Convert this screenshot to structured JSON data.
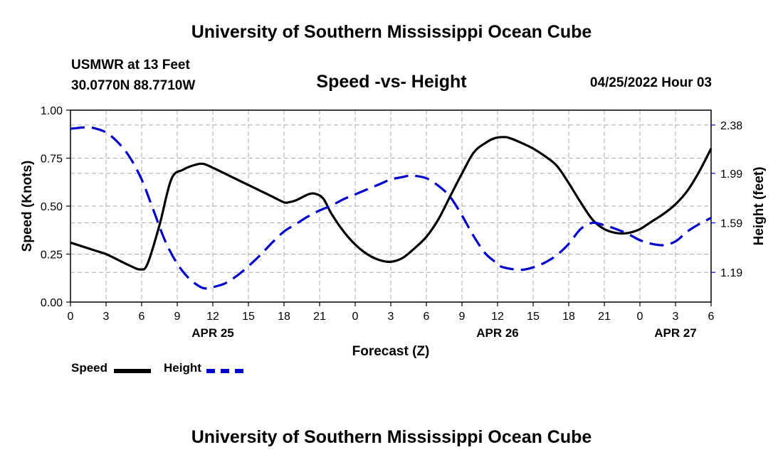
{
  "header": {
    "title": "University of Southern Mississippi Ocean Cube",
    "station_line1": "USMWR at 13 Feet",
    "station_line2": "30.0770N  88.7710W",
    "subtitle": "Speed -vs- Height",
    "datetime": "04/25/2022 Hour 03"
  },
  "footer": {
    "title": "University of Southern Mississippi Ocean Cube"
  },
  "legend": {
    "speed_label": "Speed",
    "height_label": "Height"
  },
  "colors": {
    "speed": "#000000",
    "height": "#0000cc",
    "grid": "#aaaaaa"
  },
  "chart_data": {
    "type": "line",
    "title": "Speed -vs- Height",
    "xlabel": "Forecast (Z)",
    "ylabel": "Speed (Knots)",
    "y2label": "Height (feet)",
    "x_hours_range": [
      0,
      54
    ],
    "x_tick_hours": [
      0,
      3,
      6,
      9,
      12,
      15,
      18,
      21,
      24,
      27,
      30,
      33,
      36,
      39,
      42,
      45,
      48,
      51,
      54
    ],
    "x_tick_labels": [
      "0",
      "3",
      "6",
      "9",
      "12",
      "15",
      "18",
      "21",
      "0",
      "3",
      "6",
      "9",
      "12",
      "15",
      "18",
      "21",
      "0",
      "3",
      "6"
    ],
    "date_labels": [
      {
        "hour": 12,
        "label": "APR 25"
      },
      {
        "hour": 36,
        "label": "APR 26"
      },
      {
        "hour": 51,
        "label": "APR 27"
      }
    ],
    "ylim": [
      0,
      1.0
    ],
    "y_ticks": [
      0,
      0.25,
      0.5,
      0.75,
      1.0
    ],
    "y_tick_labels": [
      "0.00",
      "0.25",
      "0.50",
      "0.75",
      "1.00"
    ],
    "y2lim": [
      0.95,
      2.5
    ],
    "y2_ticks": [
      1.19,
      1.59,
      1.99,
      2.38
    ],
    "y2_tick_labels": [
      "1.19",
      "1.59",
      "1.99",
      "2.38"
    ],
    "series": [
      {
        "name": "Speed",
        "axis": "left",
        "style": "solid",
        "x": [
          0,
          2,
          3,
          4,
          5,
          5.9,
          6.5,
          7.5,
          8.5,
          9.5,
          10.5,
          11.2,
          12,
          13,
          14,
          15,
          16,
          17,
          18,
          18.4,
          19,
          20,
          20.6,
          21.3,
          22,
          23,
          24,
          25,
          26,
          27,
          28,
          29,
          30,
          31,
          32,
          33,
          34,
          35,
          35.8,
          36.5,
          37,
          38,
          39,
          40,
          41,
          42,
          43,
          44,
          45,
          46,
          47,
          48,
          49,
          50,
          51,
          52,
          53,
          54
        ],
        "y": [
          0.31,
          0.27,
          0.25,
          0.22,
          0.19,
          0.17,
          0.2,
          0.4,
          0.64,
          0.69,
          0.715,
          0.72,
          0.7,
          0.67,
          0.64,
          0.61,
          0.58,
          0.55,
          0.52,
          0.52,
          0.53,
          0.56,
          0.565,
          0.54,
          0.46,
          0.37,
          0.3,
          0.25,
          0.22,
          0.21,
          0.23,
          0.28,
          0.34,
          0.43,
          0.55,
          0.67,
          0.78,
          0.83,
          0.855,
          0.86,
          0.855,
          0.83,
          0.8,
          0.76,
          0.71,
          0.62,
          0.52,
          0.43,
          0.38,
          0.36,
          0.36,
          0.38,
          0.42,
          0.46,
          0.51,
          0.58,
          0.68,
          0.8
        ]
      },
      {
        "name": "Height",
        "axis": "right",
        "style": "dashed",
        "x": [
          0,
          0.5,
          1,
          1.5,
          2,
          3,
          4,
          5,
          6,
          7,
          8,
          9,
          10,
          11,
          11.6,
          12,
          13,
          14,
          15,
          16,
          17,
          18,
          19,
          20,
          21,
          22,
          23,
          24,
          25,
          26,
          27,
          28,
          28.5,
          29,
          30,
          31,
          32,
          33,
          34,
          35,
          36,
          36.2,
          37,
          38,
          39,
          40,
          41,
          42,
          43,
          44,
          45,
          46,
          47,
          48,
          49,
          50,
          51,
          52,
          53,
          54
        ],
        "y": [
          2.35,
          2.355,
          2.36,
          2.36,
          2.355,
          2.32,
          2.24,
          2.12,
          1.94,
          1.69,
          1.44,
          1.26,
          1.14,
          1.07,
          1.06,
          1.07,
          1.1,
          1.16,
          1.24,
          1.33,
          1.43,
          1.52,
          1.58,
          1.64,
          1.69,
          1.73,
          1.78,
          1.82,
          1.86,
          1.9,
          1.94,
          1.96,
          1.97,
          1.97,
          1.95,
          1.89,
          1.8,
          1.65,
          1.48,
          1.34,
          1.26,
          1.24,
          1.22,
          1.21,
          1.23,
          1.27,
          1.33,
          1.42,
          1.54,
          1.59,
          1.57,
          1.54,
          1.5,
          1.45,
          1.42,
          1.41,
          1.44,
          1.52,
          1.58,
          1.63
        ]
      }
    ]
  }
}
